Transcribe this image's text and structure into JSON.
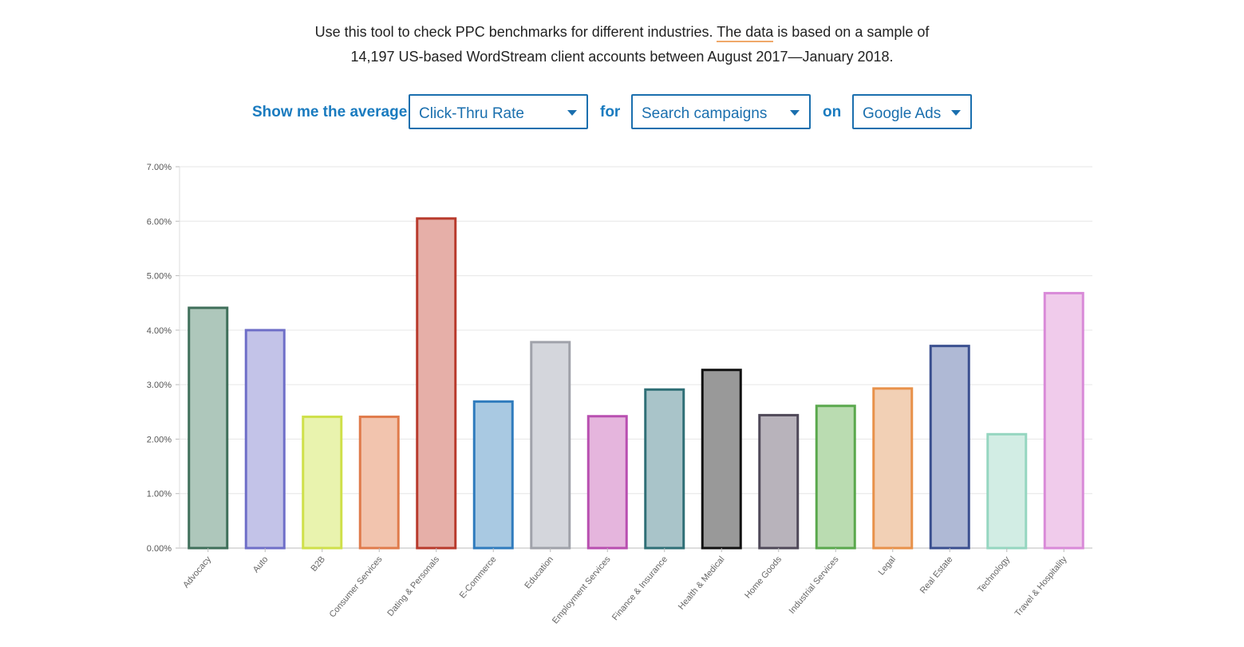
{
  "intro": {
    "line1_before": "Use this tool to check PPC benchmarks for different industries. ",
    "line1_link": "The data",
    "line1_after": " is based on a sample of",
    "line2": "14,197 US-based WordStream client accounts between August 2017—January 2018."
  },
  "controls": {
    "prefix": "Show me the average",
    "metric": "Click-Thru Rate",
    "for_label": "for",
    "campaign": "Search campaigns",
    "on_label": "on",
    "platform": "Google Ads"
  },
  "chart_data": {
    "type": "bar",
    "ylim": [
      0,
      7
    ],
    "yticks": [
      "0.00%",
      "1.00%",
      "2.00%",
      "3.00%",
      "4.00%",
      "5.00%",
      "6.00%",
      "7.00%"
    ],
    "grid": true,
    "categories": [
      "Advocacy",
      "Auto",
      "B2B",
      "Consumer Services",
      "Dating & Personals",
      "E-Commerce",
      "Education",
      "Employment Services",
      "Finance & Insurance",
      "Health & Medical",
      "Home Goods",
      "Industrial Services",
      "Legal",
      "Real Estate",
      "Technology",
      "Travel & Hospitality"
    ],
    "values": [
      4.41,
      4.0,
      2.41,
      2.41,
      6.05,
      2.69,
      3.78,
      2.42,
      2.91,
      3.27,
      2.44,
      2.61,
      2.93,
      3.71,
      2.09,
      4.68
    ],
    "fills": [
      "#aec7bb",
      "#c3c3e8",
      "#e9f3ae",
      "#f2c4ae",
      "#e6afa8",
      "#a9c9e2",
      "#d4d6dc",
      "#e5b5dd",
      "#a9c4c9",
      "#999999",
      "#b8b3bb",
      "#badcb1",
      "#f2d0b5",
      "#afb9d5",
      "#d2ede4",
      "#f0cbeb"
    ],
    "strokes": [
      "#3f6f5a",
      "#6f6fc8",
      "#cfe04a",
      "#e07b4b",
      "#b83a2c",
      "#2f7bbd",
      "#a0a2aa",
      "#b84fb0",
      "#2f6f76",
      "#111111",
      "#4f4858",
      "#5aa84d",
      "#e8914a",
      "#3a4f8f",
      "#95d6c0",
      "#d98ad8"
    ]
  }
}
